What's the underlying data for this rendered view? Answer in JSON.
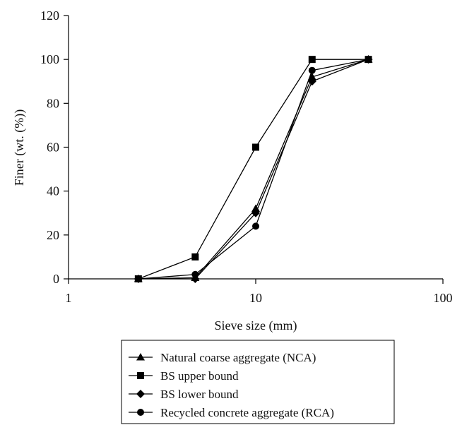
{
  "chart_data": {
    "type": "line",
    "title": "",
    "xlabel": "Sieve size (mm)",
    "ylabel": "Finer (wt. (%))",
    "xscale": "log",
    "xlim": [
      1,
      100
    ],
    "ylim": [
      0,
      120
    ],
    "x_ticks": [
      1,
      10,
      100
    ],
    "x_tick_labels": [
      "1",
      "10",
      "100"
    ],
    "y_ticks": [
      0,
      20,
      40,
      60,
      80,
      100,
      120
    ],
    "y_tick_labels": [
      "0",
      "20",
      "40",
      "60",
      "80",
      "100",
      "120"
    ],
    "grid": false,
    "legend_position": "bottom",
    "series": [
      {
        "name": "Natural coarse aggregate (NCA)",
        "marker": "triangle",
        "color": "#000000",
        "x": [
          2.36,
          4.75,
          10,
          20,
          40
        ],
        "y": [
          0,
          0.5,
          32,
          92,
          100
        ]
      },
      {
        "name": "BS upper bound",
        "marker": "square",
        "color": "#000000",
        "x": [
          2.36,
          4.75,
          10,
          20,
          40
        ],
        "y": [
          0,
          10,
          60,
          100,
          100
        ]
      },
      {
        "name": "BS lower bound",
        "marker": "diamond",
        "color": "#000000",
        "x": [
          2.36,
          4.75,
          10,
          20,
          40
        ],
        "y": [
          0,
          0,
          30,
          90,
          100
        ]
      },
      {
        "name": "Recycled concrete aggregate (RCA)",
        "marker": "circle",
        "color": "#000000",
        "x": [
          2.36,
          4.75,
          10,
          20,
          40
        ],
        "y": [
          0,
          2,
          24,
          95,
          100
        ]
      }
    ]
  }
}
